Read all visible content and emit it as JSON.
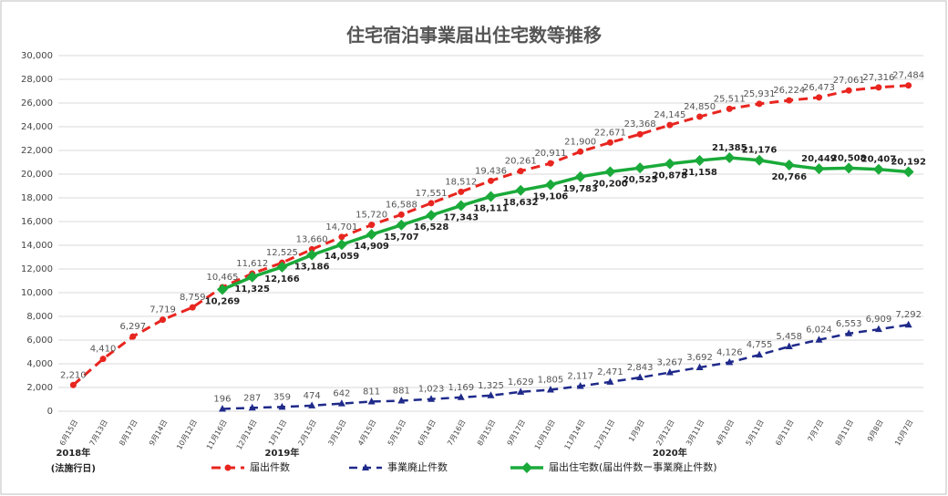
{
  "chart_data": {
    "type": "line",
    "title": "住宅宿泊事業届出住宅数等推移",
    "categories": [
      "6月15日",
      "7月13日",
      "8月17日",
      "9月14日",
      "10月12日",
      "11月16日",
      "12月14日",
      "1月11日",
      "2月15日",
      "3月15日",
      "4月15日",
      "5月15日",
      "6月14日",
      "7月16日",
      "8月15日",
      "9月17日",
      "10月10日",
      "11月14日",
      "12月11日",
      "1月9日",
      "2月12日",
      "3月11日",
      "4月10日",
      "5月11日",
      "6月11日",
      "7月7日",
      "8月11日",
      "9月8日",
      "10月7日"
    ],
    "annotations": [
      "2018年",
      "(法施行日)",
      "2019年",
      "2020年"
    ],
    "series": [
      {
        "name": "届出件数",
        "color": "#e8251f",
        "values": [
          2210,
          4410,
          6297,
          7719,
          8759,
          10465,
          11612,
          12525,
          13660,
          14701,
          15720,
          16588,
          17551,
          18512,
          19436,
          20261,
          20911,
          21900,
          22671,
          23368,
          24145,
          24850,
          25511,
          25931,
          26224,
          26473,
          27061,
          27316,
          27484
        ],
        "value_labels": [
          "2,210",
          "4,410",
          "6,297",
          "7,719",
          "8,759",
          "10,465",
          "11,612",
          "12,525",
          "13,660",
          "14,701",
          "15,720",
          "16,588",
          "17,551",
          "18,512",
          "19,436",
          "20,261",
          "20,911",
          "21,900",
          "22,671",
          "23,368",
          "24,145",
          "24,850",
          "25,511",
          "25,931",
          "26,224",
          "26,473",
          "27,061",
          "27,316",
          "27,484"
        ]
      },
      {
        "name": "事業廃止件数",
        "color": "#1f2a8a",
        "values": [
          null,
          null,
          null,
          null,
          null,
          196,
          287,
          359,
          474,
          642,
          811,
          881,
          1023,
          1169,
          1325,
          1629,
          1805,
          2117,
          2471,
          2843,
          3267,
          3692,
          4126,
          4755,
          5458,
          6024,
          6553,
          6909,
          7292
        ],
        "value_labels": [
          null,
          null,
          null,
          null,
          null,
          "196",
          "287",
          "359",
          "474",
          "642",
          "811",
          "881",
          "1,023",
          "1,169",
          "1,325",
          "1,629",
          "1,805",
          "2,117",
          "2,471",
          "2,843",
          "3,267",
          "3,692",
          "4,126",
          "4,755",
          "5,458",
          "6,024",
          "6,553",
          "6,909",
          "7,292"
        ]
      },
      {
        "name": "届出住宅数(届出件数ー事業廃止件数)",
        "color": "#1aaa3a",
        "values": [
          null,
          null,
          null,
          null,
          null,
          10269,
          11325,
          12166,
          13186,
          14059,
          14909,
          15707,
          16528,
          17343,
          18111,
          18632,
          19106,
          19783,
          20200,
          20525,
          20878,
          21158,
          21385,
          21176,
          20766,
          20449,
          20508,
          20407,
          20192
        ],
        "value_labels": [
          null,
          null,
          null,
          null,
          null,
          "10,269",
          "11,325",
          "12,166",
          "13,186",
          "14,059",
          "14,909",
          "15,707",
          "16,528",
          "17,343",
          "18,111",
          "18,632",
          "19,106",
          "19,783",
          "20,200",
          "20,525",
          "20,878",
          "21,158",
          "21,385",
          "21,176",
          "20,766",
          "20,449",
          "20,508",
          "20,407",
          "20,192"
        ]
      }
    ],
    "ylim": [
      0,
      30000
    ],
    "yticks": [
      0,
      {
        "value": 2000,
        "label": "2,000"
      },
      {
        "value": 4000,
        "label": "4,000"
      },
      {
        "value": 6000,
        "label": "6,000"
      },
      {
        "value": 8000,
        "label": "8,000"
      },
      {
        "value": 10000,
        "label": "10,000"
      },
      {
        "value": 12000,
        "label": "12,000"
      },
      {
        "value": 14000,
        "label": "14,000"
      },
      {
        "value": 16000,
        "label": "16,000"
      },
      {
        "value": 18000,
        "label": "18,000"
      },
      {
        "value": 20000,
        "label": "20,000"
      },
      {
        "value": 22000,
        "label": "22,000"
      },
      {
        "value": 24000,
        "label": "24,000"
      },
      {
        "value": 26000,
        "label": "26,000"
      },
      {
        "value": 28000,
        "label": "28,000"
      },
      {
        "value": 30000,
        "label": "30,000"
      }
    ],
    "grid": true
  }
}
